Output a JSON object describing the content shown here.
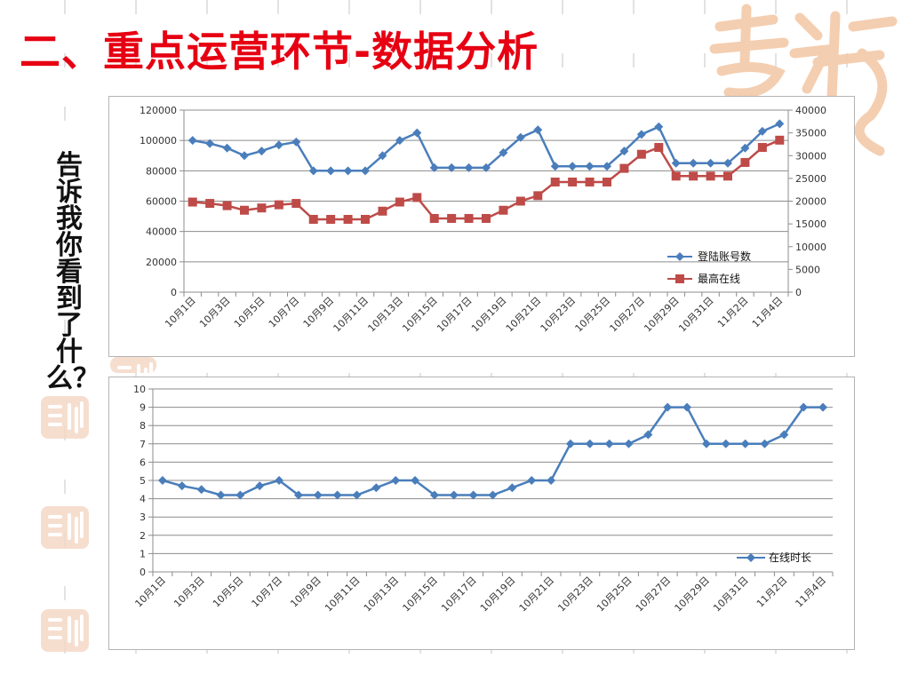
{
  "page": {
    "title": "二、重点运营环节-数据分析",
    "side_question": "告诉我你看到了什么？"
  },
  "colors": {
    "title": "#e60012",
    "series_blue": "#4a7ebb",
    "series_red": "#be4b48",
    "watermark": "#f3c9a8"
  },
  "chart_data": [
    {
      "type": "line",
      "title": "",
      "x": [
        "10月1日",
        "10月2日",
        "10月3日",
        "10月4日",
        "10月5日",
        "10月6日",
        "10月7日",
        "10月8日",
        "10月9日",
        "10月10日",
        "10月11日",
        "10月12日",
        "10月13日",
        "10月14日",
        "10月15日",
        "10月16日",
        "10月17日",
        "10月18日",
        "10月19日",
        "10月20日",
        "10月21日",
        "10月22日",
        "10月23日",
        "10月24日",
        "10月25日",
        "10月26日",
        "10月27日",
        "10月28日",
        "10月29日",
        "10月30日",
        "10月31日",
        "11月1日",
        "11月2日",
        "11月3日",
        "11月4日"
      ],
      "x_tick_labels": [
        "10月1日",
        "10月3日",
        "10月5日",
        "10月7日",
        "10月9日",
        "10月11日",
        "10月13日",
        "10月15日",
        "10月17日",
        "10月19日",
        "10月21日",
        "10月23日",
        "10月25日",
        "10月27日",
        "10月29日",
        "10月31日",
        "11月2日",
        "11月4日"
      ],
      "y_left": {
        "ticks": [
          "0",
          "20000",
          "40000",
          "60000",
          "80000",
          "100000",
          "120000"
        ],
        "range": [
          0,
          120000
        ]
      },
      "y_right": {
        "ticks": [
          "0",
          "5000",
          "10000",
          "15000",
          "20000",
          "25000",
          "30000",
          "35000",
          "40000"
        ],
        "range": [
          0,
          40000
        ]
      },
      "series": [
        {
          "name": "登陆账号数",
          "axis": "left",
          "marker": "diamond",
          "values": [
            100000,
            98000,
            95000,
            90000,
            93000,
            97000,
            99000,
            80000,
            80000,
            80000,
            80000,
            90000,
            100000,
            105000,
            82000,
            82000,
            82000,
            82000,
            92000,
            102000,
            107000,
            83000,
            83000,
            83000,
            83000,
            93000,
            104000,
            109000,
            85000,
            85000,
            85000,
            85000,
            95000,
            106000,
            111000
          ]
        },
        {
          "name": "最高在线",
          "axis": "right",
          "marker": "square",
          "values": [
            19800,
            19500,
            19000,
            18000,
            18500,
            19200,
            19500,
            16000,
            16000,
            16000,
            16000,
            17800,
            19800,
            20800,
            16200,
            16200,
            16200,
            16200,
            18000,
            20000,
            21200,
            24200,
            24200,
            24200,
            24200,
            27200,
            30300,
            31800,
            25500,
            25500,
            25500,
            25500,
            28500,
            31800,
            33400
          ]
        }
      ],
      "legend": "bottom-right",
      "grid": true
    },
    {
      "type": "line",
      "title": "",
      "x": [
        "10月1日",
        "10月2日",
        "10月3日",
        "10月4日",
        "10月5日",
        "10月6日",
        "10月7日",
        "10月8日",
        "10月9日",
        "10月10日",
        "10月11日",
        "10月12日",
        "10月13日",
        "10月14日",
        "10月15日",
        "10月16日",
        "10月17日",
        "10月18日",
        "10月19日",
        "10月20日",
        "10月21日",
        "10月22日",
        "10月23日",
        "10月24日",
        "10月25日",
        "10月26日",
        "10月27日",
        "10月28日",
        "10月29日",
        "10月30日",
        "10月31日",
        "11月1日",
        "11月2日",
        "11月3日",
        "11月4日"
      ],
      "x_tick_labels": [
        "10月1日",
        "10月3日",
        "10月5日",
        "10月7日",
        "10月9日",
        "10月11日",
        "10月13日",
        "10月15日",
        "10月17日",
        "10月19日",
        "10月21日",
        "10月23日",
        "10月25日",
        "10月27日",
        "10月29日",
        "10月31日",
        "11月2日",
        "11月4日"
      ],
      "y_left": {
        "ticks": [
          "0",
          "1",
          "2",
          "3",
          "4",
          "5",
          "6",
          "7",
          "8",
          "9",
          "10"
        ],
        "range": [
          0,
          10
        ]
      },
      "series": [
        {
          "name": "在线时长",
          "axis": "left",
          "marker": "diamond",
          "values": [
            5,
            4.7,
            4.5,
            4.2,
            4.2,
            4.7,
            5,
            4.2,
            4.2,
            4.2,
            4.2,
            4.6,
            5,
            5,
            4.2,
            4.2,
            4.2,
            4.2,
            4.6,
            5,
            5,
            7,
            7,
            7,
            7,
            7.5,
            9,
            9,
            7,
            7,
            7,
            7,
            7.5,
            9,
            9
          ]
        }
      ],
      "legend": "bottom-right",
      "grid": true
    }
  ]
}
